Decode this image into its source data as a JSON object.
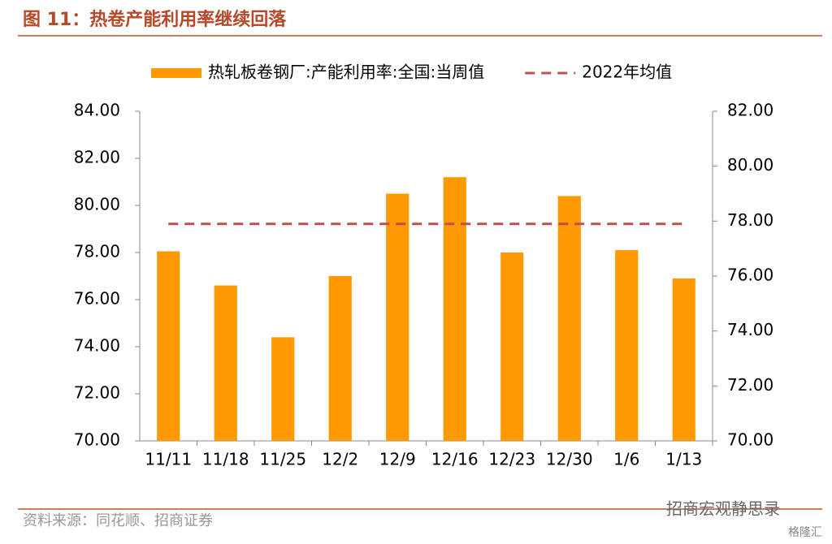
{
  "chart_data": {
    "type": "bar",
    "title": "图 11：热卷产能利用率继续回落",
    "categories": [
      "11/11",
      "11/18",
      "11/25",
      "12/2",
      "12/9",
      "12/16",
      "12/23",
      "12/30",
      "1/6",
      "1/13"
    ],
    "series": [
      {
        "name": "热轧板卷钢厂:产能利用率:全国:当周值",
        "type": "bar",
        "color": "#ff9900",
        "values": [
          78.05,
          76.6,
          74.4,
          77.0,
          80.5,
          81.2,
          78.0,
          80.4,
          78.1,
          76.9
        ]
      },
      {
        "name": "2022年均值",
        "type": "line",
        "axis": "y2",
        "dashed": true,
        "color": "#c0504d",
        "values": [
          77.9,
          77.9,
          77.9,
          77.9,
          77.9,
          77.9,
          77.9,
          77.9,
          77.9,
          77.9
        ]
      }
    ],
    "ylim": [
      70,
      84
    ],
    "yticks": [
      {
        "value": 70,
        "label": "70.00"
      },
      {
        "value": 72,
        "label": "72.00"
      },
      {
        "value": 74,
        "label": "74.00"
      },
      {
        "value": 76,
        "label": "76.00"
      },
      {
        "value": 78,
        "label": "78.00"
      },
      {
        "value": 80,
        "label": "80.00"
      },
      {
        "value": 82,
        "label": "82.00"
      },
      {
        "value": 84,
        "label": "84.00"
      }
    ],
    "y2lim": [
      70,
      82
    ],
    "y2ticks": [
      {
        "value": 70,
        "label": "70.00"
      },
      {
        "value": 72,
        "label": "72.00"
      },
      {
        "value": 74,
        "label": "74.00"
      },
      {
        "value": 76,
        "label": "76.00"
      },
      {
        "value": 78,
        "label": "78.00"
      },
      {
        "value": 80,
        "label": "80.00"
      },
      {
        "value": 82,
        "label": "82.00"
      }
    ],
    "legend": "top",
    "source": "资料来源：同花顺、招商证券",
    "watermark": "招商宏观静思录",
    "logo": "格隆汇"
  }
}
